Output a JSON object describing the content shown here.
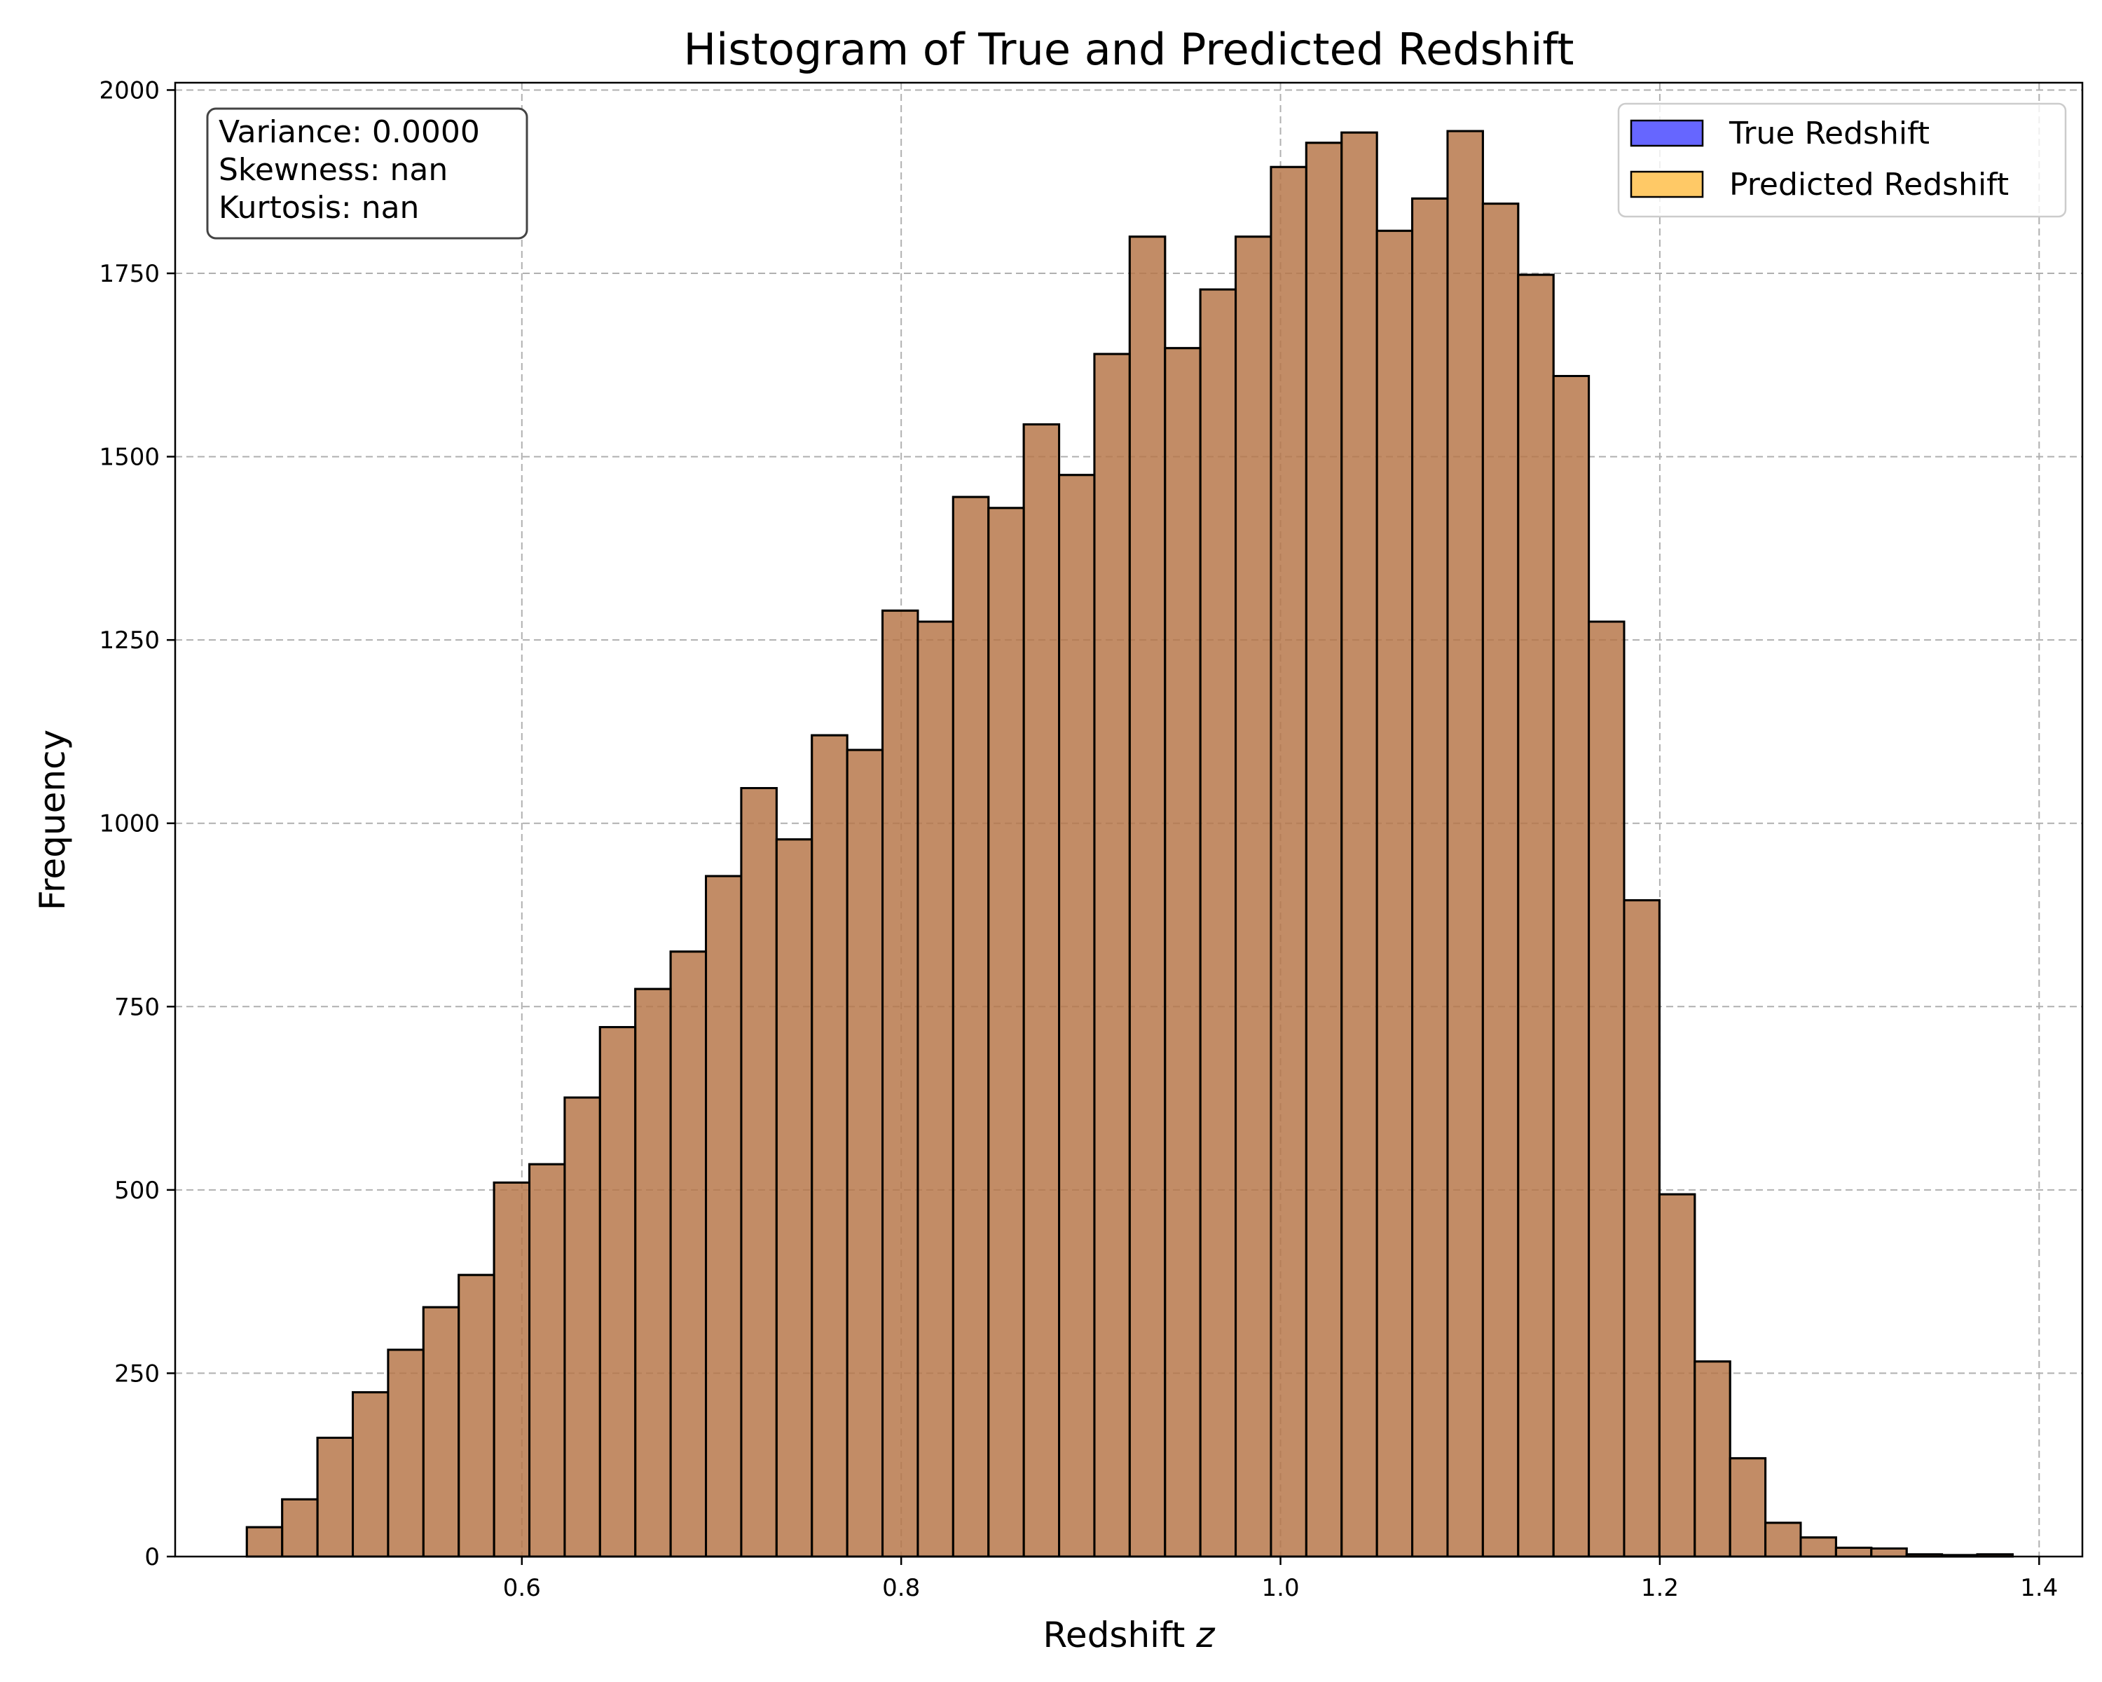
{
  "chart_data": {
    "type": "bar",
    "title": "Histogram of True and Predicted Redshift",
    "xlabel": "Redshift z",
    "xlabel_text": "Redshift ",
    "xlabel_var": "z",
    "ylabel": "Frequency",
    "xlim": [
      0.4172,
      1.4228
    ],
    "ylim": [
      0,
      2010
    ],
    "xticks": [
      0.6,
      0.8,
      1.0,
      1.2,
      1.4
    ],
    "xtick_labels": [
      "0.6",
      "0.8",
      "1.0",
      "1.2",
      "1.4"
    ],
    "yticks": [
      0,
      250,
      500,
      750,
      1000,
      1250,
      1500,
      1750,
      2000
    ],
    "ytick_labels": [
      "0",
      "250",
      "500",
      "750",
      "1000",
      "1250",
      "1500",
      "1750",
      "2000"
    ],
    "grid": true,
    "legend_position": "top-right",
    "bin_edges": [
      0.455,
      0.47362,
      0.49224,
      0.51086,
      0.52948,
      0.5481,
      0.56672,
      0.58534,
      0.60396,
      0.62258,
      0.6412,
      0.65982,
      0.67844,
      0.69706,
      0.71568,
      0.7343,
      0.75292,
      0.77154,
      0.79016,
      0.80878,
      0.8274,
      0.84602,
      0.86464,
      0.88326,
      0.90188,
      0.9205,
      0.93912,
      0.95774,
      0.97636,
      0.99498,
      1.0136,
      1.03222,
      1.05084,
      1.06946,
      1.08808,
      1.1067,
      1.12532,
      1.14394,
      1.16256,
      1.18118,
      1.1998,
      1.21842,
      1.23704,
      1.25566,
      1.27428,
      1.2929,
      1.31152,
      1.33014,
      1.34876,
      1.36738,
      1.386
    ],
    "series": [
      {
        "name": "True Redshift",
        "color": "#0000ff",
        "opacity": 0.6,
        "values": [
          40,
          78,
          162,
          224,
          282,
          340,
          384,
          510,
          535,
          626,
          722,
          774,
          825,
          928,
          1048,
          978,
          1120,
          1100,
          1290,
          1275,
          1445,
          1430,
          1544,
          1475,
          1640,
          1800,
          1648,
          1728,
          1800,
          1895,
          1928,
          1942,
          1808,
          1852,
          1944,
          1845,
          1748,
          1610,
          1275,
          895,
          494,
          266,
          134,
          46,
          26,
          12,
          11,
          3,
          2,
          3
        ]
      },
      {
        "name": "Predicted Redshift",
        "color": "#ffa500",
        "opacity": 0.6,
        "values": [
          40,
          78,
          162,
          224,
          282,
          340,
          384,
          510,
          535,
          626,
          722,
          774,
          825,
          928,
          1048,
          978,
          1120,
          1100,
          1290,
          1275,
          1445,
          1430,
          1544,
          1475,
          1640,
          1800,
          1648,
          1728,
          1800,
          1895,
          1928,
          1942,
          1808,
          1852,
          1944,
          1845,
          1748,
          1610,
          1275,
          895,
          494,
          266,
          134,
          46,
          26,
          12,
          11,
          3,
          2,
          3
        ]
      }
    ],
    "annotation": {
      "lines": [
        "Variance: 0.0000",
        "Skewness: nan",
        "Kurtosis: nan"
      ],
      "position": "top-left"
    }
  }
}
